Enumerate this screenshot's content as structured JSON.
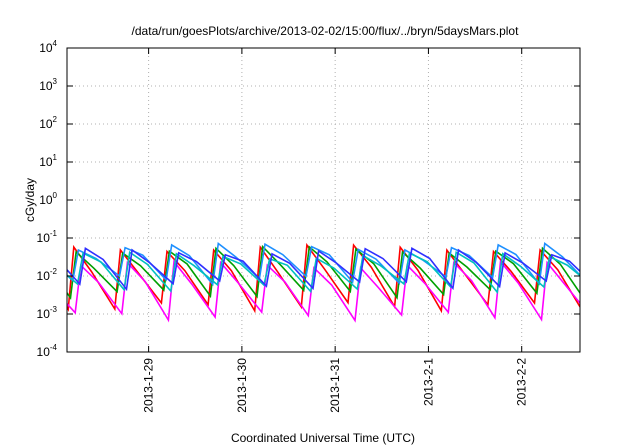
{
  "chart_data": {
    "type": "line",
    "title": "/data/run/goesPlots/archive/2013-02-02/15:00/flux/../bryn/5daysMars.plot",
    "xlabel": "Coordinated Universal Time (UTC)",
    "ylabel": "cGy/day",
    "yscale": "log",
    "ylim": [
      0.0001,
      10000
    ],
    "y_ticks": [
      {
        "base": "10",
        "exp": "-4",
        "value": 0.0001
      },
      {
        "base": "10",
        "exp": "-3",
        "value": 0.001
      },
      {
        "base": "10",
        "exp": "-2",
        "value": 0.01
      },
      {
        "base": "10",
        "exp": "-1",
        "value": 0.1
      },
      {
        "base": "10",
        "exp": "0",
        "value": 1
      },
      {
        "base": "10",
        "exp": "1",
        "value": 10
      },
      {
        "base": "10",
        "exp": "2",
        "value": 100
      },
      {
        "base": "10",
        "exp": "3",
        "value": 1000
      },
      {
        "base": "10",
        "exp": "4",
        "value": 10000
      }
    ],
    "xlim": [
      "2013-01-28T03:00",
      "2013-02-02T15:00"
    ],
    "x_ticks": [
      {
        "label": "2013-1-29",
        "value": "2013-01-29"
      },
      {
        "label": "2013-1-30",
        "value": "2013-01-30"
      },
      {
        "label": "2013-1-31",
        "value": "2013-01-31"
      },
      {
        "label": "2013-2-1",
        "value": "2013-02-01"
      },
      {
        "label": "2013-2-2",
        "value": "2013-02-02"
      }
    ],
    "grid": true,
    "pattern": "periodic sawtooth, ~12 h period; sharp rise to peak then gradual decay",
    "series": [
      {
        "color": "#ff0000",
        "peak": 0.055,
        "trough": 0.0016
      },
      {
        "color": "#00a000",
        "peak": 0.05,
        "trough": 0.0035
      },
      {
        "color": "#1e90ff",
        "peak": 0.06,
        "trough": 0.008
      },
      {
        "color": "#ff00ff",
        "peak": 0.02,
        "trough": 0.0009
      },
      {
        "color": "#00c0c0",
        "peak": 0.035,
        "trough": 0.005
      },
      {
        "color": "#3030ff",
        "peak": 0.045,
        "trough": 0.006
      }
    ]
  }
}
